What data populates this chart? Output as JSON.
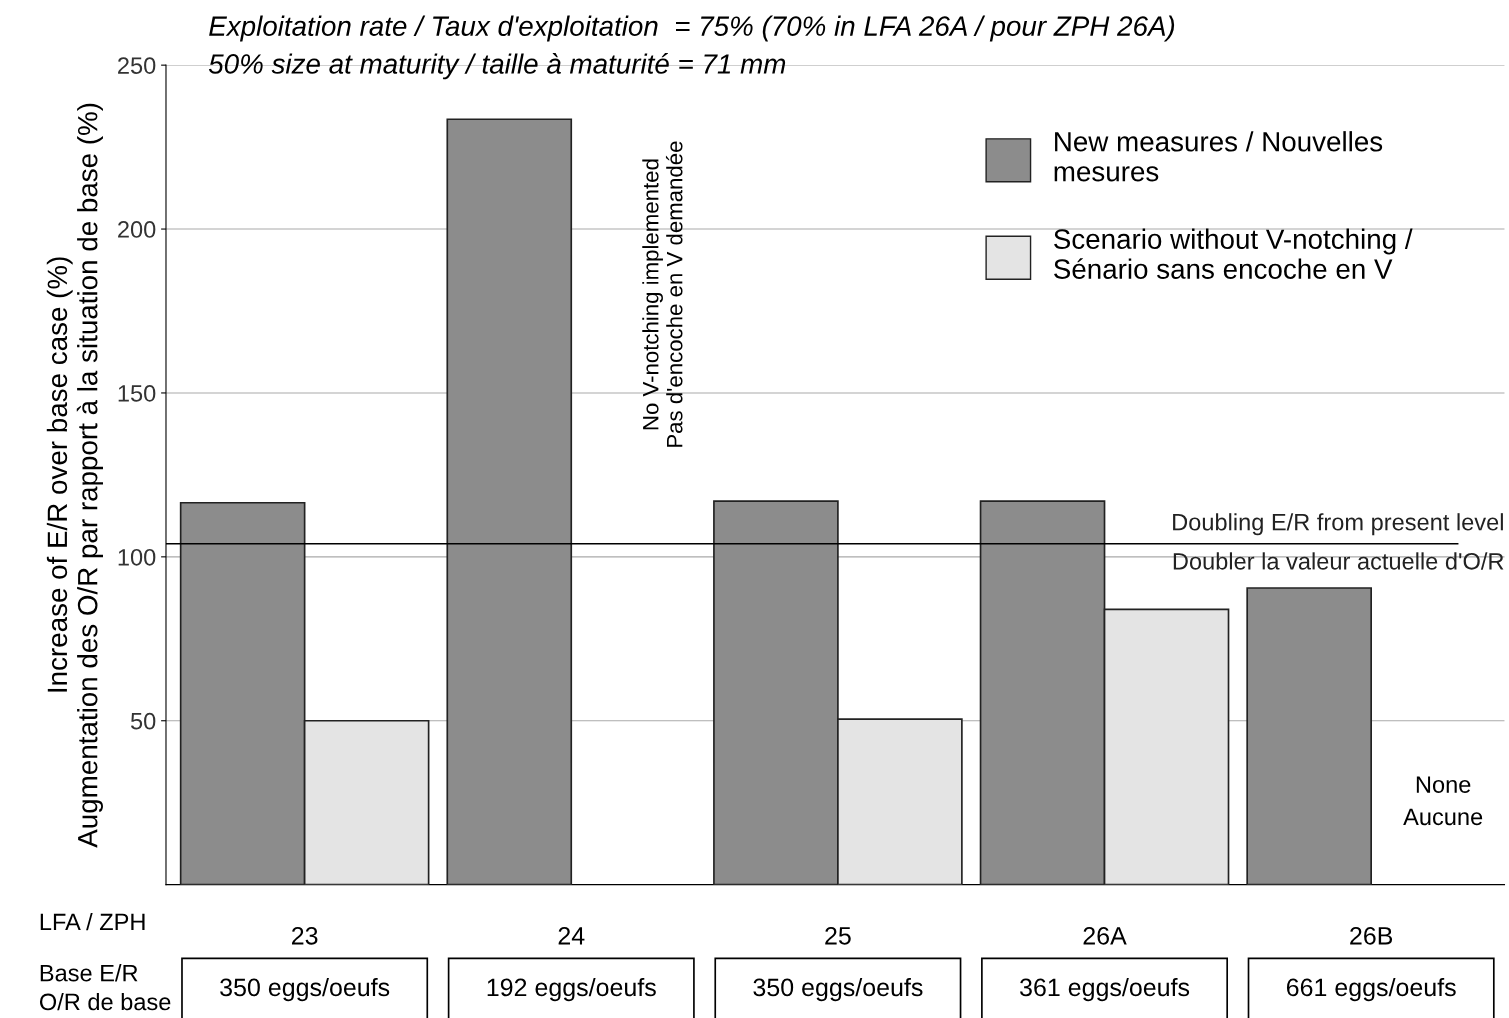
{
  "chart_data": {
    "type": "bar",
    "title": "Exploitation rate / Taux d'exploitation  = 75% (70% in LFA 26A / pour ZPH 26A)",
    "subtitle": "50% size at maturity / taille à maturité = 71 mm",
    "xlabel": "LFA / ZPH",
    "ylabel": "Increase of E/R over base case (%)\nAugmentation des O/R par rapport à la situation de base (%)",
    "categories": [
      "23",
      "24",
      "25",
      "26A",
      "26B"
    ],
    "series": [
      {
        "name": "New measures / Nouvelles\nmesures",
        "color": "#8c8c8c",
        "values": [
          116.5,
          233.5,
          117,
          117,
          90.5
        ]
      },
      {
        "name": "Scenario without V-notching /\nSénario sans encoche en V",
        "color": "#e4e4e4",
        "values": [
          50,
          null,
          50.5,
          84,
          null
        ]
      }
    ],
    "ylim": [
      0,
      250
    ],
    "yticks": [
      50,
      100,
      150,
      200,
      250
    ],
    "grid": "y",
    "legend": "top right",
    "ref_lines": [
      {
        "axis": "y",
        "value": 104,
        "label": "Doubling E/R from present level\nDoubler la valeur actuelle d'O/R",
        "color": "#000000"
      }
    ],
    "annotations": [
      "No V-notching implemented\nPas d'encoche en V demandée",
      "None\nAucune",
      "Base E/R\nO/R de base",
      "350 eggs/oeufs",
      "192 eggs/oeufs",
      "350 eggs/oeufs",
      "361 eggs/oeufs",
      "661 eggs/oeufs"
    ]
  }
}
